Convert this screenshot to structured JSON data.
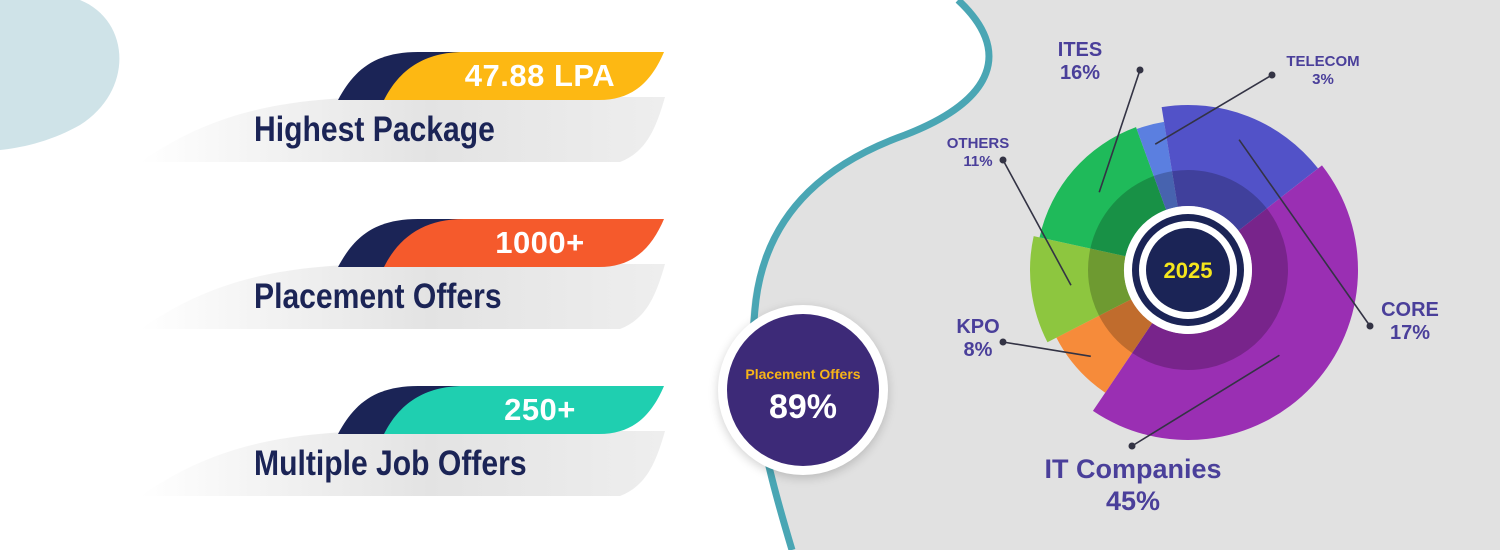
{
  "stats": [
    {
      "value": "47.88 LPA",
      "label": "Highest Package",
      "color": "#fdb813"
    },
    {
      "value": "1000+",
      "label": "Placement Offers",
      "color": "#f55a2c"
    },
    {
      "value": "250+",
      "label": "Multiple Job Offers",
      "color": "#1fcfb0"
    }
  ],
  "badge": {
    "label": "Placement Offers",
    "value": "89%"
  },
  "colors": {
    "navy": "#1b2456",
    "teal_curve": "#4aa6b4",
    "gray_panel": "#e1e1e1",
    "label_text": "#4a3f9a"
  },
  "chart_data": {
    "type": "pie",
    "center_label": "2025",
    "slices": [
      {
        "name": "IT Companies",
        "pct_text": "45%",
        "value": 45,
        "color": "#9a2fb3"
      },
      {
        "name": "KPO",
        "pct_text": "8%",
        "value": 8,
        "color": "#f68b3a"
      },
      {
        "name": "OTHERS",
        "pct_text": "11%",
        "value": 11,
        "color": "#8dc63f"
      },
      {
        "name": "ITES",
        "pct_text": "16%",
        "value": 16,
        "color": "#1fba5a"
      },
      {
        "name": "TELECOM",
        "pct_text": "3%",
        "value": 3,
        "color": "#5b7fe0"
      },
      {
        "name": "CORE",
        "pct_text": "17%",
        "value": 17,
        "color": "#5252c8"
      }
    ]
  }
}
